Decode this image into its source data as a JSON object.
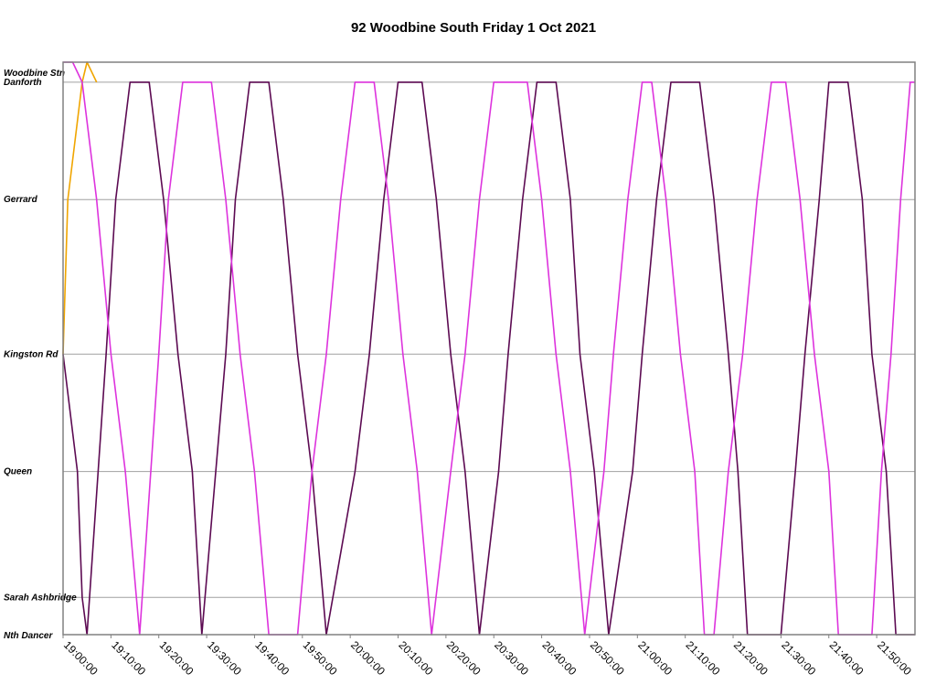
{
  "chart_data": {
    "type": "line",
    "title": "92 Woodbine South Friday 1 Oct 2021",
    "xlabel": "",
    "ylabel": "",
    "x_range": [
      "19:00:00",
      "21:58:00"
    ],
    "x_ticks": [
      "19:00:00",
      "19:10:00",
      "19:20:00",
      "19:30:00",
      "19:40:00",
      "19:50:00",
      "20:00:00",
      "20:10:00",
      "20:20:00",
      "20:30:00",
      "20:40:00",
      "20:50:00",
      "21:00:00",
      "21:10:00",
      "21:20:00",
      "21:30:00",
      "21:40:00",
      "21:50:00"
    ],
    "stops": [
      {
        "name": "Woodbine Stn",
        "pos": 0
      },
      {
        "name": "Danforth",
        "pos": 0.035
      },
      {
        "name": "Gerrard",
        "pos": 0.24
      },
      {
        "name": "Kingston Rd",
        "pos": 0.51
      },
      {
        "name": "Queen",
        "pos": 0.715
      },
      {
        "name": "Sarah Ashbridge",
        "pos": 0.935
      },
      {
        "name": "Nth Dancer",
        "pos": 1
      }
    ],
    "grid": true,
    "legend": "none",
    "series": [
      {
        "color": "#f0a500",
        "points": [
          [
            "19:00",
            "Kingston Rd"
          ],
          [
            "19:01",
            "Gerrard"
          ],
          [
            "19:04",
            "Danforth"
          ],
          [
            "19:05",
            "Woodbine Stn"
          ],
          [
            "19:07",
            "Danforth"
          ]
        ]
      },
      {
        "color": "#5c0a52",
        "points": [
          [
            "19:00",
            "Kingston Rd"
          ],
          [
            "19:03",
            "Queen"
          ],
          [
            "19:04",
            "Sarah Ashbridge"
          ],
          [
            "19:05",
            "Nth Dancer"
          ],
          [
            "19:09",
            "Kingston Rd"
          ],
          [
            "19:11",
            "Gerrard"
          ],
          [
            "19:14",
            "Danforth"
          ],
          [
            "19:18",
            "Danforth"
          ],
          [
            "19:21",
            "Gerrard"
          ],
          [
            "19:24",
            "Kingston Rd"
          ],
          [
            "19:27",
            "Queen"
          ],
          [
            "19:29",
            "Nth Dancer"
          ],
          [
            "19:34",
            "Kingston Rd"
          ],
          [
            "19:36",
            "Gerrard"
          ],
          [
            "19:39",
            "Danforth"
          ],
          [
            "19:43",
            "Danforth"
          ],
          [
            "19:46",
            "Gerrard"
          ],
          [
            "19:49",
            "Kingston Rd"
          ],
          [
            "19:52",
            "Queen"
          ],
          [
            "19:55",
            "Nth Dancer"
          ],
          [
            "20:01",
            "Queen"
          ],
          [
            "20:04",
            "Kingston Rd"
          ],
          [
            "20:07",
            "Gerrard"
          ],
          [
            "20:10",
            "Danforth"
          ],
          [
            "20:15",
            "Danforth"
          ],
          [
            "20:18",
            "Gerrard"
          ],
          [
            "20:21",
            "Kingston Rd"
          ],
          [
            "20:24",
            "Queen"
          ],
          [
            "20:27",
            "Nth Dancer"
          ],
          [
            "20:31",
            "Queen"
          ],
          [
            "20:33",
            "Kingston Rd"
          ],
          [
            "20:36",
            "Gerrard"
          ],
          [
            "20:39",
            "Danforth"
          ],
          [
            "20:43",
            "Danforth"
          ],
          [
            "20:46",
            "Gerrard"
          ],
          [
            "20:48",
            "Kingston Rd"
          ],
          [
            "20:51",
            "Queen"
          ],
          [
            "20:54",
            "Nth Dancer"
          ],
          [
            "20:59",
            "Queen"
          ],
          [
            "21:01",
            "Kingston Rd"
          ],
          [
            "21:04",
            "Gerrard"
          ],
          [
            "21:07",
            "Danforth"
          ],
          [
            "21:13",
            "Danforth"
          ],
          [
            "21:16",
            "Gerrard"
          ],
          [
            "21:19",
            "Kingston Rd"
          ],
          [
            "21:21",
            "Queen"
          ],
          [
            "21:23",
            "Nth Dancer"
          ],
          [
            "21:30",
            "Nth Dancer"
          ],
          [
            "21:33",
            "Queen"
          ],
          [
            "21:35",
            "Kingston Rd"
          ],
          [
            "21:38",
            "Gerrard"
          ],
          [
            "21:40",
            "Danforth"
          ],
          [
            "21:44",
            "Danforth"
          ],
          [
            "21:47",
            "Gerrard"
          ],
          [
            "21:49",
            "Kingston Rd"
          ],
          [
            "21:52",
            "Queen"
          ],
          [
            "21:54",
            "Nth Dancer"
          ],
          [
            "21:58",
            "Nth Dancer"
          ]
        ]
      },
      {
        "color": "#dd33dd",
        "points": [
          [
            "19:00",
            "Woodbine Stn"
          ],
          [
            "19:02",
            "Woodbine Stn"
          ],
          [
            "19:04",
            "Danforth"
          ],
          [
            "19:07",
            "Gerrard"
          ],
          [
            "19:10",
            "Kingston Rd"
          ],
          [
            "19:13",
            "Queen"
          ],
          [
            "19:16",
            "Nth Dancer"
          ],
          [
            "19:20",
            "Kingston Rd"
          ],
          [
            "19:22",
            "Gerrard"
          ],
          [
            "19:25",
            "Danforth"
          ],
          [
            "19:31",
            "Danforth"
          ],
          [
            "19:34",
            "Gerrard"
          ],
          [
            "19:37",
            "Kingston Rd"
          ],
          [
            "19:40",
            "Queen"
          ],
          [
            "19:43",
            "Nth Dancer"
          ],
          [
            "19:49",
            "Nth Dancer"
          ],
          [
            "19:52",
            "Queen"
          ],
          [
            "19:55",
            "Kingston Rd"
          ],
          [
            "19:58",
            "Gerrard"
          ],
          [
            "20:01",
            "Danforth"
          ],
          [
            "20:05",
            "Danforth"
          ],
          [
            "20:08",
            "Gerrard"
          ],
          [
            "20:11",
            "Kingston Rd"
          ],
          [
            "20:14",
            "Queen"
          ],
          [
            "20:17",
            "Nth Dancer"
          ],
          [
            "20:21",
            "Queen"
          ],
          [
            "20:24",
            "Kingston Rd"
          ],
          [
            "20:27",
            "Gerrard"
          ],
          [
            "20:30",
            "Danforth"
          ],
          [
            "20:37",
            "Danforth"
          ],
          [
            "20:40",
            "Gerrard"
          ],
          [
            "20:43",
            "Kingston Rd"
          ],
          [
            "20:46",
            "Queen"
          ],
          [
            "20:49",
            "Nth Dancer"
          ],
          [
            "20:53",
            "Queen"
          ],
          [
            "20:55",
            "Kingston Rd"
          ],
          [
            "20:58",
            "Gerrard"
          ],
          [
            "21:01",
            "Danforth"
          ],
          [
            "21:03",
            "Danforth"
          ],
          [
            "21:06",
            "Gerrard"
          ],
          [
            "21:09",
            "Kingston Rd"
          ],
          [
            "21:12",
            "Queen"
          ],
          [
            "21:14",
            "Nth Dancer"
          ],
          [
            "21:16",
            "Nth Dancer"
          ],
          [
            "21:19",
            "Queen"
          ],
          [
            "21:22",
            "Kingston Rd"
          ],
          [
            "21:25",
            "Gerrard"
          ],
          [
            "21:28",
            "Danforth"
          ],
          [
            "21:31",
            "Danforth"
          ],
          [
            "21:34",
            "Gerrard"
          ],
          [
            "21:37",
            "Kingston Rd"
          ],
          [
            "21:40",
            "Queen"
          ],
          [
            "21:42",
            "Nth Dancer"
          ],
          [
            "21:49",
            "Nth Dancer"
          ],
          [
            "21:51",
            "Queen"
          ],
          [
            "21:53",
            "Kingston Rd"
          ],
          [
            "21:55",
            "Gerrard"
          ],
          [
            "21:57",
            "Danforth"
          ],
          [
            "21:58",
            "Danforth"
          ]
        ]
      }
    ]
  }
}
